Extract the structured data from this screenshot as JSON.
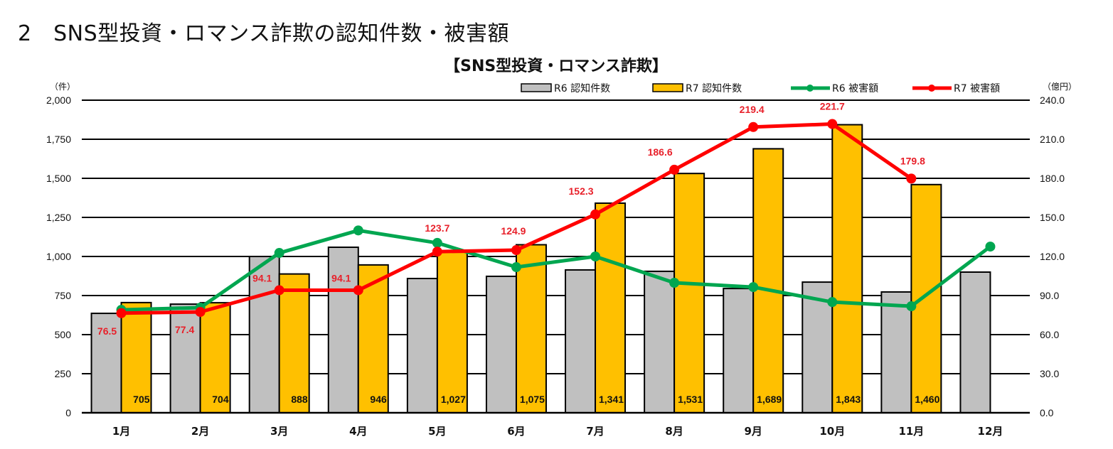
{
  "page": {
    "heading": "2　SNS型投資・ロマンス詐欺の認知件数・被害額"
  },
  "chart_data": {
    "type": "bar",
    "title": "【SNS型投資・ロマンス詐欺】",
    "categories": [
      "1月",
      "2月",
      "3月",
      "4月",
      "5月",
      "6月",
      "7月",
      "8月",
      "9月",
      "10月",
      "11月",
      "12月"
    ],
    "y_left": {
      "unit_label": "（件）",
      "range": [
        0,
        2000
      ],
      "ticks": [
        0,
        250,
        500,
        750,
        1000,
        1250,
        1500,
        1750,
        2000
      ],
      "tick_labels": [
        "0",
        "250",
        "500",
        "750",
        "1,000",
        "1,250",
        "1,500",
        "1,750",
        "2,000"
      ]
    },
    "y_right": {
      "unit_label": "（億円）",
      "range": [
        0,
        240
      ],
      "ticks": [
        0,
        30,
        60,
        90,
        120,
        150,
        180,
        210,
        240
      ],
      "tick_labels": [
        "0.0",
        "30.0",
        "60.0",
        "90.0",
        "120.0",
        "150.0",
        "180.0",
        "210.0",
        "240.0"
      ]
    },
    "grid": true,
    "legend_position": "top-right",
    "series": [
      {
        "name": "R6 認知件数",
        "type": "bar",
        "axis": "left",
        "color": "#c0c0c0",
        "values": [
          636,
          695,
          1000,
          1059,
          859,
          873,
          914,
          905,
          795,
          836,
          773,
          900
        ],
        "labels_shown": false
      },
      {
        "name": "R7 認知件数",
        "type": "bar",
        "axis": "left",
        "color": "#ffc000",
        "values": [
          705,
          704,
          888,
          946,
          1027,
          1075,
          1341,
          1531,
          1689,
          1843,
          1460,
          null
        ],
        "labels": [
          "705",
          "704",
          "888",
          "946",
          "1,027",
          "1,075",
          "1,341",
          "1,531",
          "1,689",
          "1,843",
          "1,460",
          ""
        ]
      },
      {
        "name": "R6 被害額",
        "type": "line",
        "axis": "right",
        "color": "#00a650",
        "values": [
          79.0,
          80.7,
          122.7,
          140.0,
          130.4,
          111.8,
          120.0,
          99.8,
          96.5,
          85.0,
          81.8,
          127.6
        ],
        "labels_shown": false
      },
      {
        "name": "R7 被害額",
        "type": "line",
        "axis": "right",
        "color": "#ff0000",
        "values": [
          76.5,
          77.4,
          94.1,
          94.1,
          123.7,
          124.9,
          152.3,
          186.6,
          219.4,
          221.7,
          179.8,
          null
        ],
        "labels": [
          "76.5",
          "77.4",
          "94.1",
          "94.1",
          "123.7",
          "124.9",
          "152.3",
          "186.6",
          "219.4",
          "221.7",
          "179.8",
          ""
        ]
      }
    ]
  }
}
